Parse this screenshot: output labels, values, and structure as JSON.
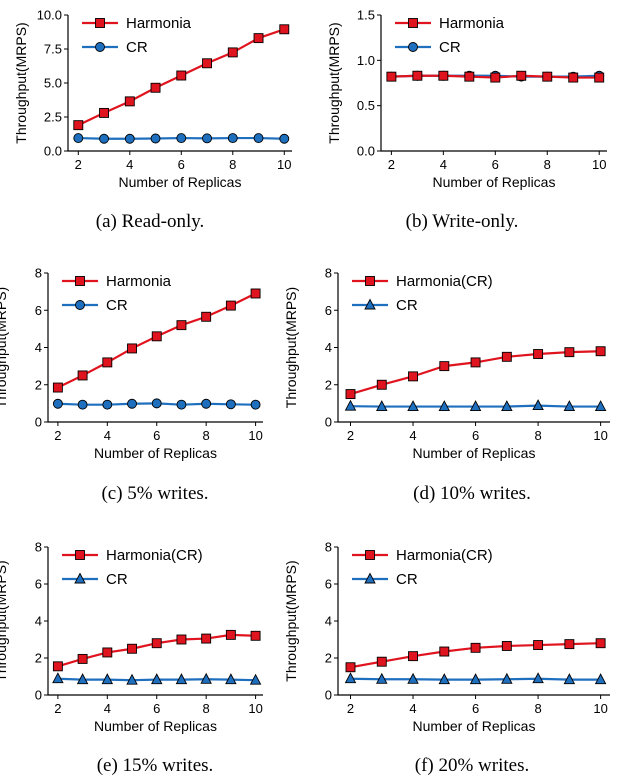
{
  "chart_data": [
    {
      "type": "line",
      "caption": "(a) Read-only.",
      "xlabel": "Number of Replicas",
      "ylabel": "Throughput(MRPS)",
      "x": [
        2,
        3,
        4,
        5,
        6,
        7,
        8,
        9,
        10
      ],
      "xlim": [
        1.6,
        10.3
      ],
      "xticks": [
        2,
        4,
        6,
        8,
        10
      ],
      "ylim": [
        0,
        10
      ],
      "yticks": [
        0,
        2.5,
        5,
        7.5,
        10
      ],
      "yticklabels": [
        "0.0",
        "2.5",
        "5.0",
        "7.5",
        "10.0"
      ],
      "series": [
        {
          "name": "Harmonia",
          "color": "#e0141e",
          "marker": "square",
          "values": [
            1.9,
            2.8,
            3.65,
            4.65,
            5.55,
            6.45,
            7.25,
            8.3,
            8.95
          ]
        },
        {
          "name": "CR",
          "color": "#1f6fbf",
          "marker": "circle",
          "values": [
            0.95,
            0.9,
            0.9,
            0.92,
            0.95,
            0.93,
            0.95,
            0.95,
            0.9
          ]
        }
      ]
    },
    {
      "type": "line",
      "caption": "(b) Write-only.",
      "xlabel": "Number of Replicas",
      "ylabel": "Throughput(MRPS)",
      "x": [
        2,
        3,
        4,
        5,
        6,
        7,
        8,
        9,
        10
      ],
      "xlim": [
        1.6,
        10.3
      ],
      "xticks": [
        2,
        4,
        6,
        8,
        10
      ],
      "ylim": [
        0,
        1.5
      ],
      "yticks": [
        0,
        0.5,
        1.0,
        1.5
      ],
      "yticklabels": [
        "0.0",
        "0.5",
        "1.0",
        "1.5"
      ],
      "series": [
        {
          "name": "Harmonia",
          "color": "#e0141e",
          "marker": "square",
          "values": [
            0.82,
            0.83,
            0.83,
            0.82,
            0.81,
            0.83,
            0.82,
            0.81,
            0.81
          ]
        },
        {
          "name": "CR",
          "color": "#1f6fbf",
          "marker": "circle",
          "values": [
            0.82,
            0.83,
            0.83,
            0.83,
            0.83,
            0.82,
            0.82,
            0.82,
            0.83
          ]
        }
      ]
    },
    {
      "type": "line",
      "caption": "(c) 5% writes.",
      "xlabel": "Number of Replicas",
      "ylabel": "Throughput(MRPS)",
      "x": [
        2,
        3,
        4,
        5,
        6,
        7,
        8,
        9,
        10
      ],
      "xlim": [
        1.6,
        10.3
      ],
      "xticks": [
        2,
        4,
        6,
        8,
        10
      ],
      "ylim": [
        0,
        8
      ],
      "yticks": [
        0,
        2,
        4,
        6,
        8
      ],
      "yticklabels": [
        "0",
        "2",
        "4",
        "6",
        "8"
      ],
      "series": [
        {
          "name": "Harmonia",
          "color": "#e0141e",
          "marker": "square",
          "values": [
            1.85,
            2.5,
            3.2,
            3.95,
            4.6,
            5.2,
            5.65,
            6.25,
            6.9
          ]
        },
        {
          "name": "CR",
          "color": "#1f6fbf",
          "marker": "circle",
          "values": [
            0.98,
            0.93,
            0.93,
            0.98,
            1.0,
            0.93,
            0.98,
            0.95,
            0.93
          ]
        }
      ]
    },
    {
      "type": "line",
      "caption": "(d) 10% writes.",
      "xlabel": "Number of Replicas",
      "ylabel": "Throughput(MRPS)",
      "x": [
        2,
        3,
        4,
        5,
        6,
        7,
        8,
        9,
        10
      ],
      "xlim": [
        1.6,
        10.3
      ],
      "xticks": [
        2,
        4,
        6,
        8,
        10
      ],
      "ylim": [
        0,
        8
      ],
      "yticks": [
        0,
        2,
        4,
        6,
        8
      ],
      "yticklabels": [
        "0",
        "2",
        "4",
        "6",
        "8"
      ],
      "series": [
        {
          "name": "Harmonia(CR)",
          "color": "#e0141e",
          "marker": "square",
          "values": [
            1.5,
            2.0,
            2.45,
            3.0,
            3.2,
            3.5,
            3.65,
            3.75,
            3.8
          ]
        },
        {
          "name": "CR",
          "color": "#1f6fbf",
          "marker": "triangle",
          "values": [
            0.85,
            0.83,
            0.83,
            0.83,
            0.83,
            0.83,
            0.88,
            0.83,
            0.83
          ]
        }
      ]
    },
    {
      "type": "line",
      "caption": "(e) 15% writes.",
      "xlabel": "Number of Replicas",
      "ylabel": "Throughput(MRPS)",
      "x": [
        2,
        3,
        4,
        5,
        6,
        7,
        8,
        9,
        10
      ],
      "xlim": [
        1.6,
        10.3
      ],
      "xticks": [
        2,
        4,
        6,
        8,
        10
      ],
      "ylim": [
        0,
        8
      ],
      "yticks": [
        0,
        2,
        4,
        6,
        8
      ],
      "yticklabels": [
        "0",
        "2",
        "4",
        "6",
        "8"
      ],
      "series": [
        {
          "name": "Harmonia(CR)",
          "color": "#e0141e",
          "marker": "square",
          "values": [
            1.55,
            1.95,
            2.3,
            2.5,
            2.8,
            3.0,
            3.05,
            3.25,
            3.2
          ]
        },
        {
          "name": "CR",
          "color": "#1f6fbf",
          "marker": "triangle",
          "values": [
            0.88,
            0.83,
            0.83,
            0.8,
            0.83,
            0.83,
            0.85,
            0.83,
            0.8
          ]
        }
      ]
    },
    {
      "type": "line",
      "caption": "(f) 20% writes.",
      "xlabel": "Number of Replicas",
      "ylabel": "Throughput(MRPS)",
      "x": [
        2,
        3,
        4,
        5,
        6,
        7,
        8,
        9,
        10
      ],
      "xlim": [
        1.6,
        10.3
      ],
      "xticks": [
        2,
        4,
        6,
        8,
        10
      ],
      "ylim": [
        0,
        8
      ],
      "yticks": [
        0,
        2,
        4,
        6,
        8
      ],
      "yticklabels": [
        "0",
        "2",
        "4",
        "6",
        "8"
      ],
      "series": [
        {
          "name": "Harmonia(CR)",
          "color": "#e0141e",
          "marker": "square",
          "values": [
            1.5,
            1.8,
            2.1,
            2.35,
            2.55,
            2.65,
            2.7,
            2.75,
            2.8
          ]
        },
        {
          "name": "CR",
          "color": "#1f6fbf",
          "marker": "triangle",
          "values": [
            0.88,
            0.85,
            0.85,
            0.83,
            0.83,
            0.85,
            0.88,
            0.83,
            0.83
          ]
        }
      ]
    }
  ]
}
